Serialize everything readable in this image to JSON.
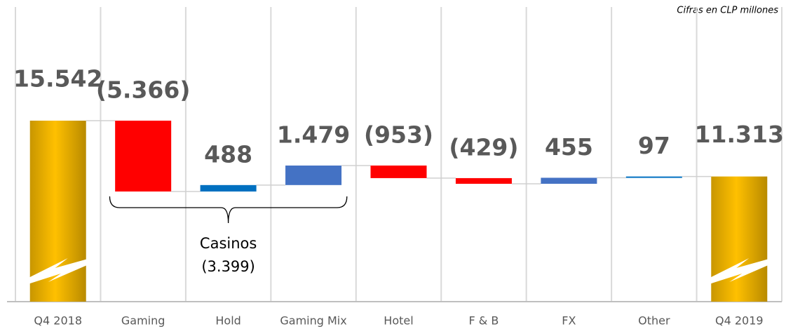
{
  "chart_data": {
    "type": "waterfall",
    "note": "Cifras en CLP millones",
    "categories": [
      "Q4 2018",
      "Gaming",
      "Hold",
      "Gaming Mix",
      "Hotel",
      "F & B",
      "FX",
      "Other",
      "Q4 2019"
    ],
    "values": [
      15542,
      -5366,
      488,
      1479,
      -953,
      -429,
      455,
      97,
      11313
    ],
    "value_labels": [
      "15.542",
      "(5.366)",
      "488",
      "1.479",
      "(953)",
      "(429)",
      "455",
      "97",
      "11.313"
    ],
    "totals": [
      true,
      false,
      false,
      false,
      false,
      false,
      false,
      false,
      true
    ],
    "colors": [
      "#e6b000",
      "#ff0000",
      "#0070c0",
      "#4472c4",
      "#ff0000",
      "#ff0000",
      "#4472c4",
      "#0070c0",
      "#e6b000"
    ],
    "annotation": {
      "text": "Casinos",
      "value": -3399,
      "value_label": "(3.399)",
      "from": 1,
      "to": 3
    }
  }
}
